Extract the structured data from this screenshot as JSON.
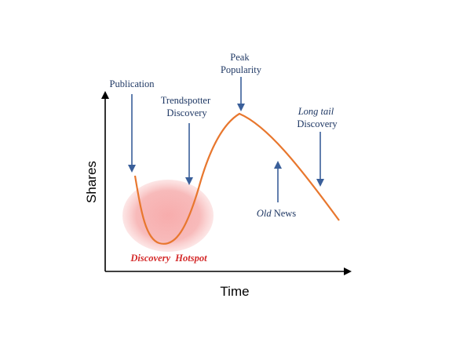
{
  "axes": {
    "x_label": "Time",
    "y_label": "Shares"
  },
  "annotations": {
    "publication": "Publication",
    "trendspotter_line1": "Trendspotter",
    "trendspotter_line2": "Discovery",
    "peak_line1": "Peak",
    "peak_line2": "Popularity",
    "longtail_line1": "Long tail",
    "longtail_line2": "Discovery",
    "oldnews_italic": "Old",
    "oldnews_rest": " News",
    "hotspot": "Discovery  Hotspot"
  },
  "colors": {
    "curve": "#e8772e",
    "arrow": "#3a5f9a",
    "hotspot_fill": "#f4a6a6",
    "hotspot_text": "#d42a2a",
    "axis": "#000000",
    "label_text": "#1f3864"
  }
}
